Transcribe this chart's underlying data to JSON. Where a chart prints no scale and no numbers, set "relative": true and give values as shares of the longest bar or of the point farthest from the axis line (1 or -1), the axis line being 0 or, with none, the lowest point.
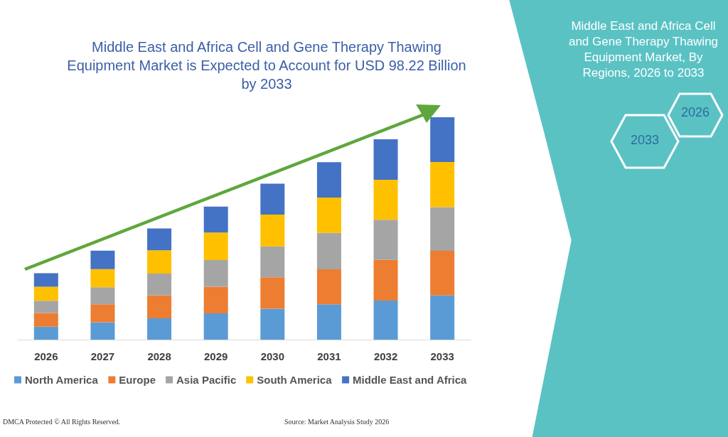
{
  "chart_data": {
    "type": "bar",
    "title": "Middle East and Africa Cell and Gene Therapy Thawing\nEquipment Market is Expected to Account for USD 98.22 Billion\nby 2033",
    "categories": [
      "2026",
      "2027",
      "2028",
      "2029",
      "2030",
      "2031",
      "2032",
      "2033"
    ],
    "stacked": true,
    "relative": true,
    "legend": "bottom",
    "grid": false,
    "series": [
      {
        "name": "North America",
        "color": "#5b9bd5",
        "values": [
          0.058,
          0.078,
          0.096,
          0.118,
          0.139,
          0.159,
          0.176,
          0.199
        ]
      },
      {
        "name": "Europe",
        "color": "#ed7d31",
        "values": [
          0.062,
          0.081,
          0.104,
          0.12,
          0.141,
          0.157,
          0.183,
          0.2
        ]
      },
      {
        "name": "Asia Pacific",
        "color": "#a5a5a5",
        "values": [
          0.055,
          0.077,
          0.097,
          0.12,
          0.139,
          0.164,
          0.18,
          0.197
        ]
      },
      {
        "name": "South America",
        "color": "#ffc000",
        "values": [
          0.063,
          0.081,
          0.105,
          0.124,
          0.143,
          0.159,
          0.18,
          0.203
        ]
      },
      {
        "name": "Middle East and Africa",
        "color": "#4472c4",
        "values": [
          0.061,
          0.083,
          0.098,
          0.116,
          0.139,
          0.159,
          0.182,
          0.201
        ]
      }
    ],
    "annotations": [
      "Middle East and Africa Cell and Gene Therapy Thawing Equipment Market, By Regions, 2026 to 2033",
      "2026",
      "2033",
      "DMCA Protected © All Rights Reserved.",
      "Source: Market Analysis Study 2026"
    ]
  }
}
